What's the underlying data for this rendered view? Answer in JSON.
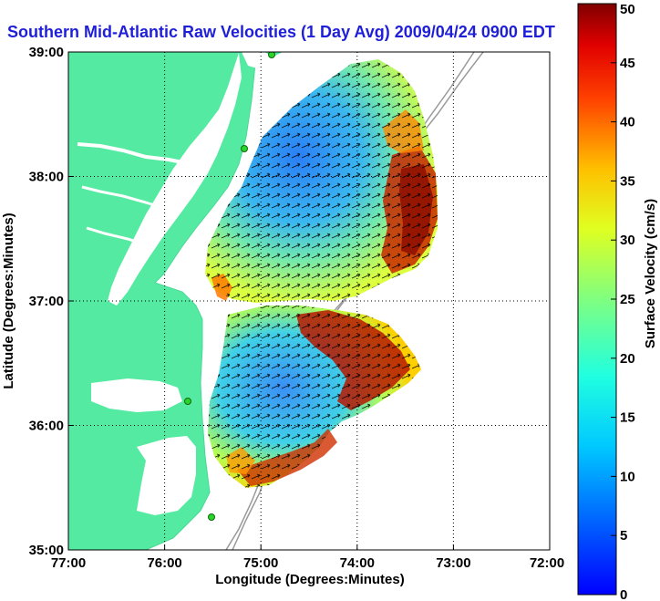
{
  "title": "Southern Mid-Atlantic Raw Velocities (1 Day Avg) 2009/04/24 0900 EDT",
  "map": {
    "x_axis_label": "Longitude (Degrees:Minutes)",
    "y_axis_label": "Latitude (Degrees:Minutes)",
    "x_ticks": [
      "77:00",
      "76:00",
      "75:00",
      "74:00",
      "73:00",
      "72:00"
    ],
    "y_ticks": [
      "39:00",
      "38:00",
      "37:00",
      "36:00",
      "35:00"
    ],
    "lon_range": [
      -77,
      -72
    ],
    "lat_range": [
      35,
      39
    ],
    "land_color": "#54eaa2",
    "grid": "dotted"
  },
  "colorbar": {
    "label": "Surface Velocity (cm/s)",
    "ticks": [
      "0",
      "5",
      "10",
      "15",
      "20",
      "25",
      "30",
      "35",
      "40",
      "45",
      "50"
    ],
    "range": [
      0,
      50
    ],
    "colormap": "jet"
  }
}
